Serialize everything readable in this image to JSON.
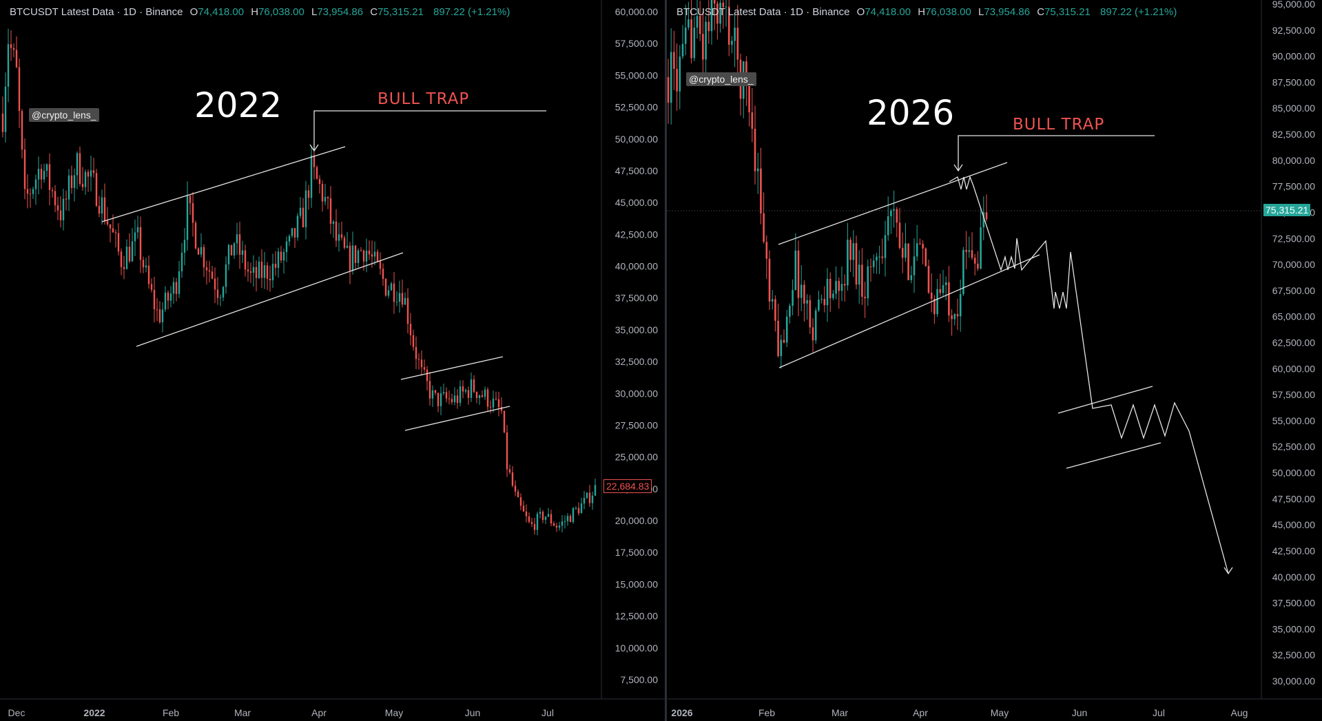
{
  "left": {
    "header": {
      "symbol": "BTCUSDT Latest Data · 1D · Binance",
      "o_label": "O",
      "o": "74,418.00",
      "h_label": "H",
      "h": "76,038.00",
      "l_label": "L",
      "l": "73,954.86",
      "c_label": "C",
      "c": "75,315.21",
      "change": "897.22 (+1.21%)"
    },
    "watermark": "@crypto_lens_",
    "year_label": "2022",
    "trap_label": "BULL TRAP",
    "last_price": "22,684.83",
    "y_ticks": [
      "60,000.00",
      "57,500.00",
      "55,000.00",
      "52,500.00",
      "50,000.00",
      "47,500.00",
      "45,000.00",
      "42,500.00",
      "40,000.00",
      "37,500.00",
      "35,000.00",
      "32,500.00",
      "30,000.00",
      "27,500.00",
      "25,000.00",
      "22,500.00",
      "20,000.00",
      "17,500.00",
      "15,000.00",
      "12,500.00",
      "10,000.00",
      "7,500.00"
    ],
    "x_ticks": [
      "Dec",
      "2022",
      "Feb",
      "Mar",
      "Apr",
      "May",
      "Jun",
      "Jul"
    ]
  },
  "right": {
    "header": {
      "symbol": "BTCUSDT Latest Data · 1D · Binance",
      "o_label": "O",
      "o": "74,418.00",
      "h_label": "H",
      "h": "76,038.00",
      "l_label": "L",
      "l": "73,954.86",
      "c_label": "C",
      "c": "75,315.21",
      "change": "897.22 (+1.21%)"
    },
    "watermark": "@crypto_lens_",
    "year_label": "2026",
    "trap_label": "BULL TRAP",
    "last_price": "75,315.21",
    "y_ticks": [
      "95,000.00",
      "92,500.00",
      "90,000.00",
      "87,500.00",
      "85,000.00",
      "82,500.00",
      "80,000.00",
      "77,500.00",
      "75,000.00",
      "72,500.00",
      "70,000.00",
      "67,500.00",
      "65,000.00",
      "62,500.00",
      "60,000.00",
      "57,500.00",
      "55,000.00",
      "52,500.00",
      "50,000.00",
      "47,500.00",
      "45,000.00",
      "42,500.00",
      "40,000.00",
      "37,500.00",
      "35,000.00",
      "32,500.00",
      "30,000.00"
    ],
    "x_ticks": [
      "2026",
      "Feb",
      "Mar",
      "Apr",
      "May",
      "Jun",
      "Jul",
      "Aug"
    ]
  },
  "chart_data": [
    {
      "type": "candlestick",
      "title": "BTCUSDT Latest Data · 1D · Binance",
      "annotation_year": "2022",
      "annotation": "BULL TRAP",
      "ylim": [
        5000,
        61000
      ],
      "x_range": [
        "Dec",
        "Jul"
      ],
      "last_price": 22684.83,
      "key_levels": [
        {
          "label": "Dec",
          "close": 50000
        },
        {
          "label": "2022",
          "close": 47000
        },
        {
          "label": "Feb",
          "close": 38000
        },
        {
          "label": "Mar",
          "close": 39000
        },
        {
          "label": "Apr",
          "close": 46500
        },
        {
          "label": "May",
          "close": 38500
        },
        {
          "label": "Jun",
          "close": 30000
        },
        {
          "label": "Jul",
          "close": 20500
        },
        {
          "label": "end",
          "close": 22684.83
        }
      ]
    },
    {
      "type": "candlestick",
      "title": "BTCUSDT Latest Data · 1D · Binance",
      "annotation_year": "2026",
      "annotation": "BULL TRAP",
      "ylim": [
        28750,
        95000
      ],
      "x_range": [
        "2026",
        "Aug"
      ],
      "last_price": 75315.21,
      "key_levels": [
        {
          "label": "2026",
          "close": 88000
        },
        {
          "label": "Feb",
          "close": 62000
        },
        {
          "label": "Mar",
          "close": 68000
        },
        {
          "label": "Apr",
          "close": 68000
        },
        {
          "label": "end",
          "close": 75315.21
        }
      ],
      "projection_targets": [
        70000,
        66000,
        56000,
        51000,
        40000
      ]
    }
  ]
}
